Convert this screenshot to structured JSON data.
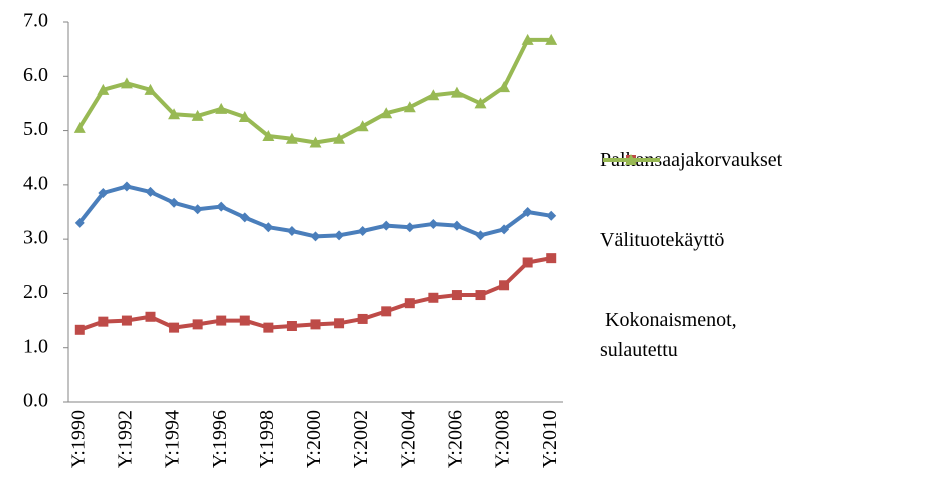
{
  "chart_data": {
    "type": "line",
    "categories": [
      "Y:1990",
      null,
      "Y:1992",
      null,
      "Y:1994",
      null,
      "Y:1996",
      null,
      "Y:1998",
      null,
      "Y:2000",
      null,
      "Y:2002",
      null,
      "Y:2004",
      null,
      "Y:2006",
      null,
      "Y:2008",
      null,
      "Y:2010"
    ],
    "series": [
      {
        "name": "Palkansaajakorvaukset",
        "color": "#4a7ebb",
        "marker": "diamond",
        "values": [
          3.3,
          3.85,
          3.97,
          3.87,
          3.67,
          3.55,
          3.6,
          3.4,
          3.22,
          3.15,
          3.05,
          3.07,
          3.15,
          3.25,
          3.22,
          3.28,
          3.25,
          3.07,
          3.18,
          3.5,
          3.43
        ]
      },
      {
        "name": "Välituotekäyttö",
        "color": "#be4b48",
        "marker": "square",
        "values": [
          1.33,
          1.48,
          1.5,
          1.57,
          1.37,
          1.43,
          1.5,
          1.5,
          1.37,
          1.4,
          1.43,
          1.45,
          1.53,
          1.67,
          1.82,
          1.92,
          1.97,
          1.97,
          2.15,
          2.57,
          2.65
        ]
      },
      {
        "name": " Kokonaismenot, sulautettu",
        "color": "#98b954",
        "marker": "triangle",
        "values": [
          5.05,
          5.75,
          5.87,
          5.75,
          5.3,
          5.27,
          5.4,
          5.25,
          4.9,
          4.85,
          4.78,
          4.85,
          5.08,
          5.32,
          5.43,
          5.65,
          5.7,
          5.5,
          5.8,
          6.67,
          6.67
        ]
      }
    ],
    "ylim": [
      0,
      7
    ],
    "yticks": [
      {
        "value": 0,
        "label": "0.0"
      },
      {
        "value": 1,
        "label": "1.0"
      },
      {
        "value": 2,
        "label": "2.0"
      },
      {
        "value": 3,
        "label": "3.0"
      },
      {
        "value": 4,
        "label": "4.0"
      },
      {
        "value": 5,
        "label": "5.0"
      },
      {
        "value": 6,
        "label": "6.0"
      },
      {
        "value": 7,
        "label": "7.0"
      }
    ],
    "grid": false,
    "legend": "right"
  }
}
